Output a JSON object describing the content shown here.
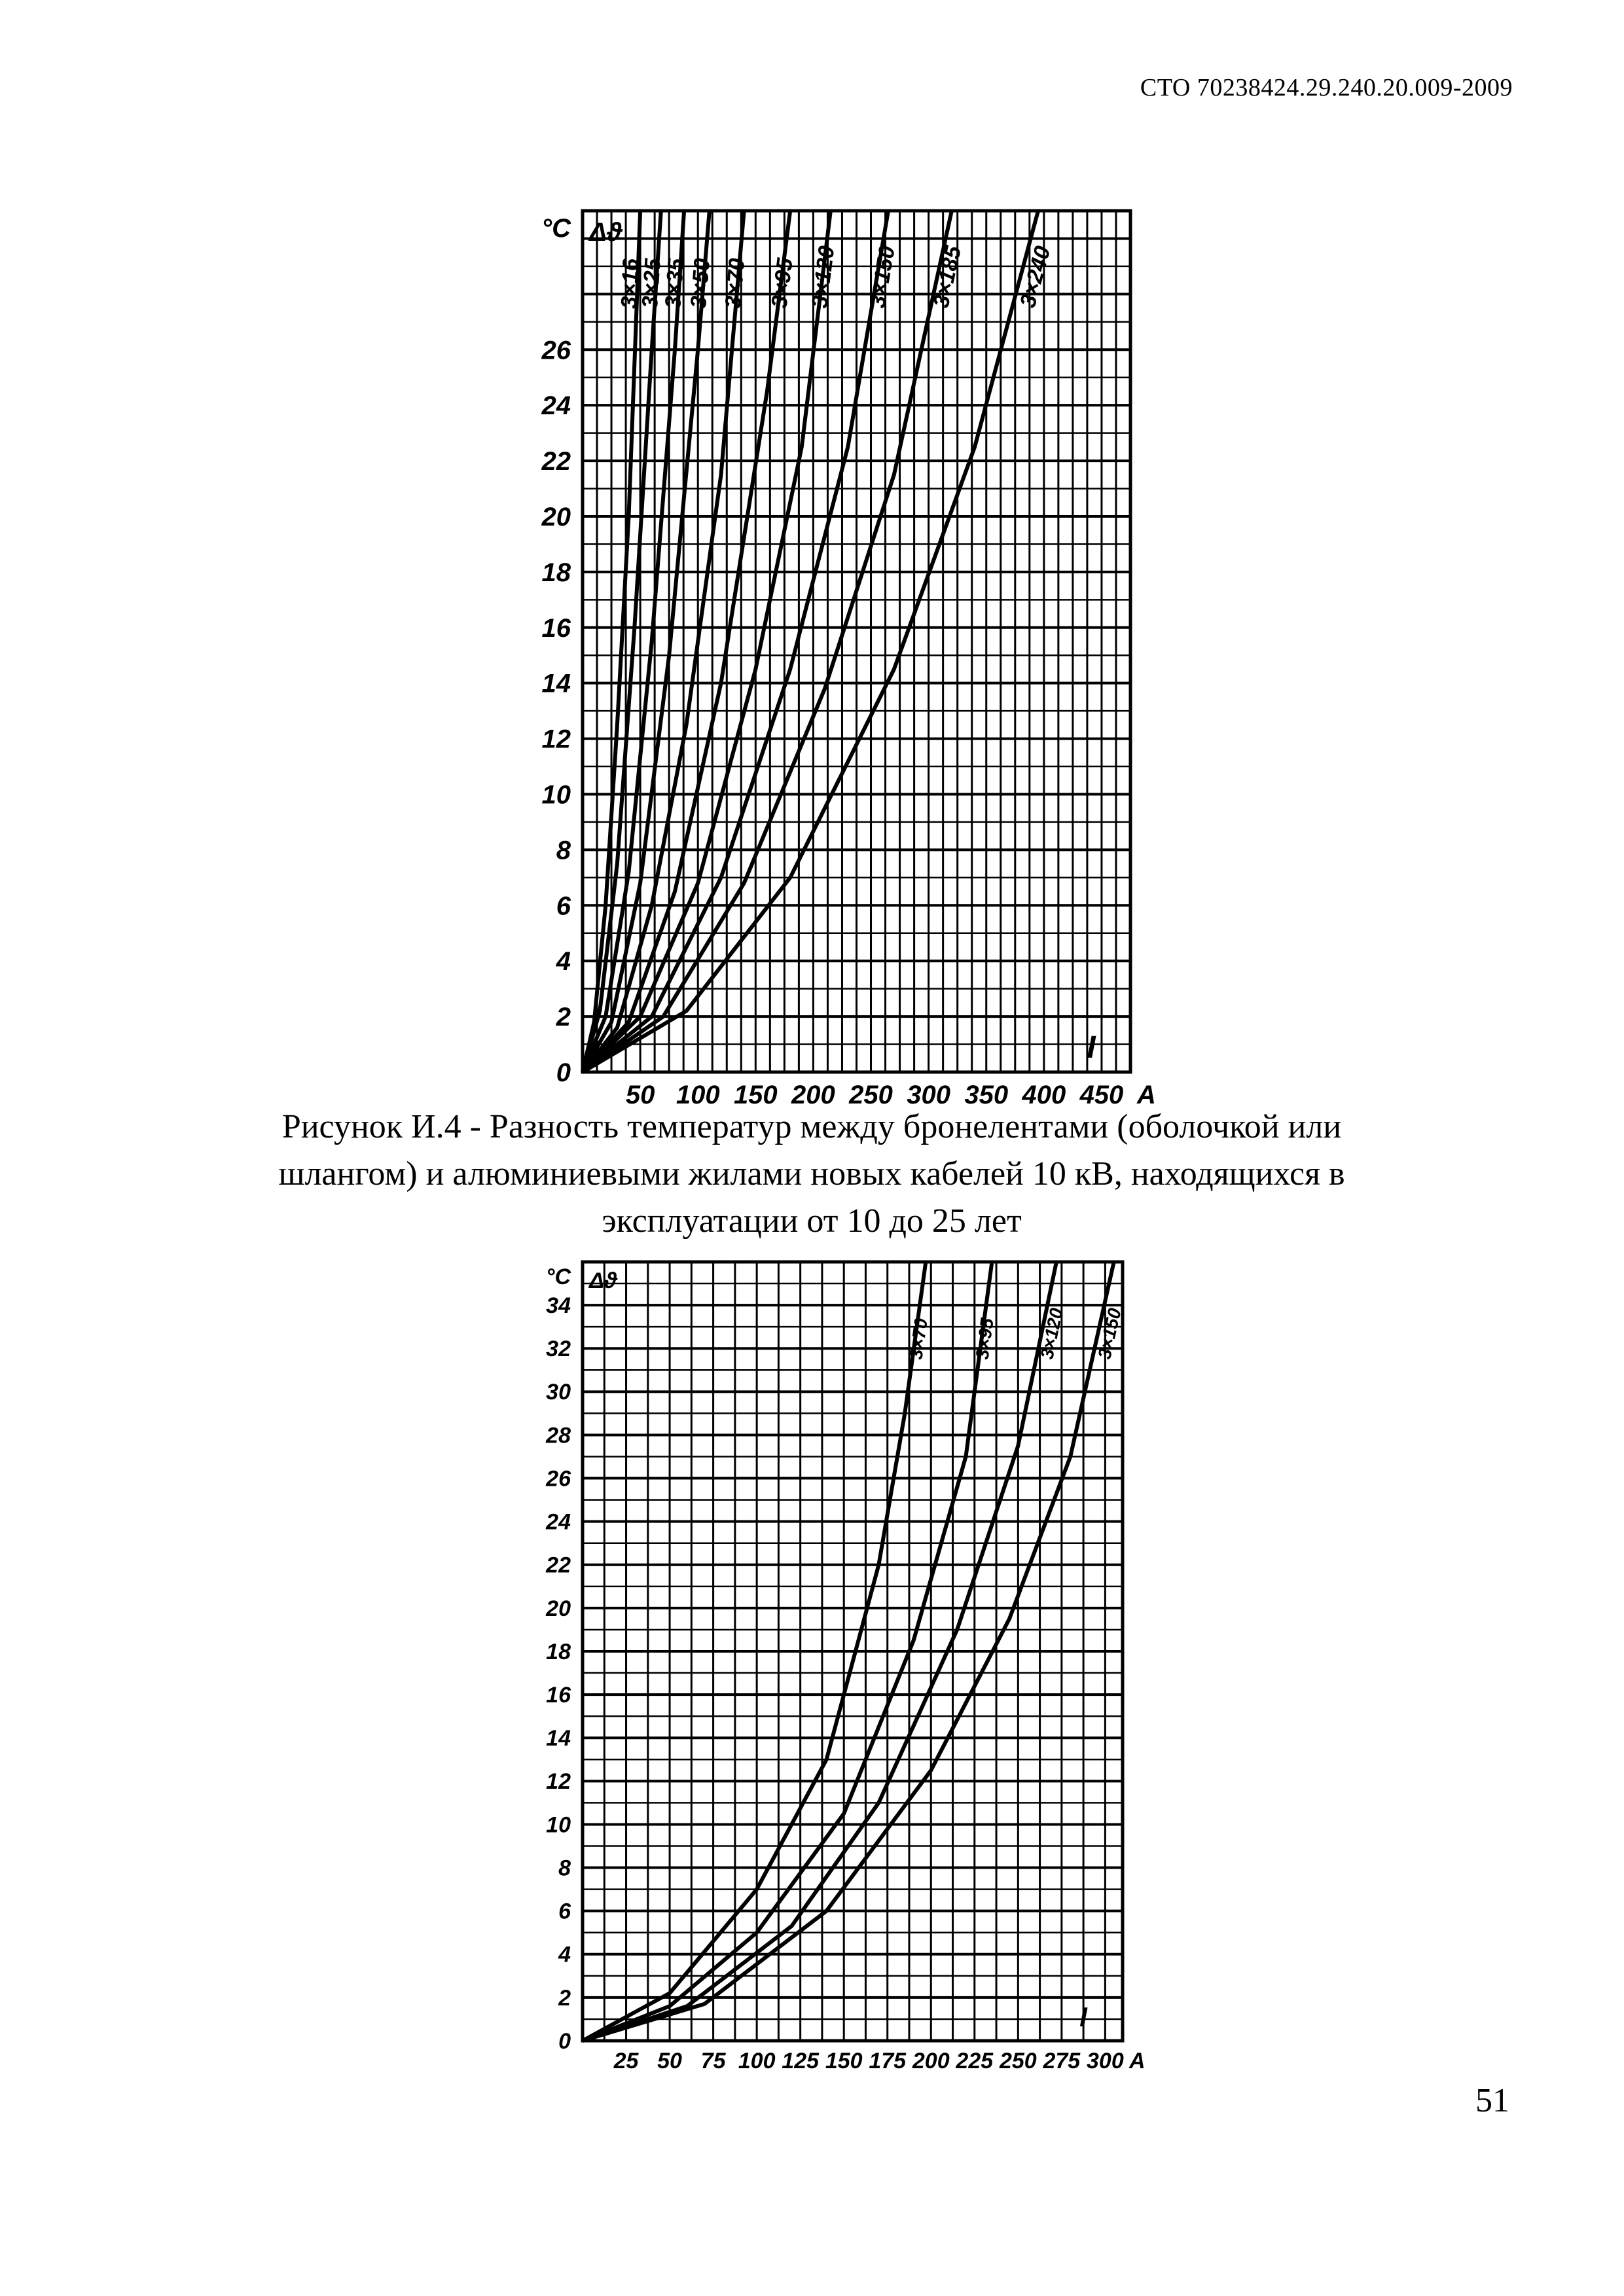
{
  "header": {
    "doc_code": "СТО 70238424.29.240.20.009-2009"
  },
  "caption": {
    "lines": [
      "Рисунок И.4 - Разность температур между бронелентами (оболочкой или",
      "шлангом) и алюминиевыми жилами новых кабелей 10 кВ, находящихся в",
      "эксплуатации от 10 до 25 лет"
    ]
  },
  "page": {
    "number": "51"
  },
  "chart_data": [
    {
      "type": "line",
      "unit_label": "°C",
      "ylabel": "Δϑ",
      "xlabel": "I",
      "x_unit": "A",
      "xlim": [
        0,
        475
      ],
      "ylim": [
        0,
        31
      ],
      "x_ticks": [
        50,
        100,
        150,
        200,
        250,
        300,
        350,
        400,
        450
      ],
      "y_ticks": [
        0,
        2,
        4,
        6,
        8,
        10,
        12,
        14,
        16,
        18,
        20,
        22,
        24,
        26
      ],
      "grid": true,
      "series": [
        {
          "name": "3×16",
          "x": [
            0,
            10,
            20,
            30,
            40,
            50
          ],
          "y": [
            0,
            1.8,
            6,
            12.5,
            20,
            31
          ]
        },
        {
          "name": "3×25",
          "x": [
            0,
            15,
            30,
            45,
            60,
            68
          ],
          "y": [
            0,
            2.2,
            7.5,
            16,
            26,
            31
          ]
        },
        {
          "name": "3×35",
          "x": [
            0,
            20,
            40,
            60,
            80,
            88
          ],
          "y": [
            0,
            2,
            7.2,
            15.5,
            26,
            31
          ]
        },
        {
          "name": "3×50",
          "x": [
            0,
            25,
            50,
            75,
            100,
            110
          ],
          "y": [
            0,
            1.8,
            6.8,
            15,
            26,
            31
          ]
        },
        {
          "name": "3×70",
          "x": [
            0,
            30,
            60,
            90,
            120,
            140
          ],
          "y": [
            0,
            1.6,
            6,
            12.5,
            21.5,
            31
          ]
        },
        {
          "name": "3×95",
          "x": [
            0,
            40,
            80,
            120,
            160,
            180
          ],
          "y": [
            0,
            1.8,
            6.5,
            14,
            24.5,
            31
          ]
        },
        {
          "name": "3×120",
          "x": [
            0,
            50,
            100,
            150,
            190,
            215
          ],
          "y": [
            0,
            2,
            6.8,
            14.5,
            22.5,
            31
          ]
        },
        {
          "name": "3×150",
          "x": [
            0,
            60,
            120,
            180,
            230,
            265
          ],
          "y": [
            0,
            2,
            7,
            14.5,
            22.5,
            31
          ]
        },
        {
          "name": "3×185",
          "x": [
            0,
            70,
            140,
            210,
            270,
            320
          ],
          "y": [
            0,
            2,
            6.8,
            13.8,
            21.5,
            31
          ]
        },
        {
          "name": "3×240",
          "x": [
            0,
            90,
            180,
            270,
            340,
            395
          ],
          "y": [
            0,
            2.2,
            7,
            14.5,
            22.5,
            31
          ]
        }
      ]
    },
    {
      "type": "line",
      "unit_label": "°C",
      "ylabel": "Δϑ",
      "xlabel": "I",
      "x_unit": "A",
      "xlim": [
        0,
        310
      ],
      "ylim": [
        0,
        36
      ],
      "x_ticks": [
        25,
        50,
        75,
        100,
        125,
        150,
        175,
        200,
        225,
        250,
        275,
        300
      ],
      "y_ticks": [
        0,
        2,
        4,
        6,
        8,
        10,
        12,
        14,
        16,
        18,
        20,
        22,
        24,
        26,
        28,
        30,
        32,
        34
      ],
      "grid": true,
      "series": [
        {
          "name": "3×70",
          "x": [
            0,
            50,
            100,
            140,
            170,
            185,
            197
          ],
          "y": [
            0,
            2.2,
            7,
            13,
            22,
            29,
            36
          ]
        },
        {
          "name": "3×95",
          "x": [
            0,
            50,
            100,
            150,
            190,
            220,
            235
          ],
          "y": [
            0,
            1.6,
            5,
            10.5,
            18.5,
            27,
            36
          ]
        },
        {
          "name": "3×120",
          "x": [
            0,
            60,
            120,
            170,
            215,
            250,
            272
          ],
          "y": [
            0,
            1.6,
            5.3,
            11,
            19,
            27.5,
            36
          ]
        },
        {
          "name": "3×150",
          "x": [
            0,
            70,
            140,
            200,
            245,
            280,
            305
          ],
          "y": [
            0,
            1.7,
            6,
            12.5,
            19.5,
            27,
            36
          ]
        }
      ]
    }
  ]
}
